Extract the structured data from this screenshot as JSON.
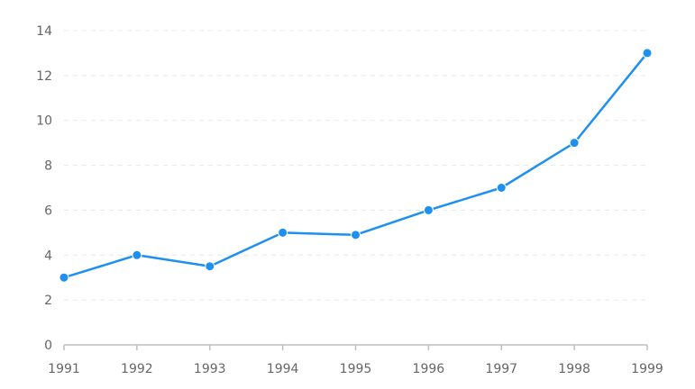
{
  "chart_data": {
    "type": "line",
    "title": "",
    "xlabel": "",
    "ylabel": "",
    "x": [
      "1991",
      "1992",
      "1993",
      "1994",
      "1995",
      "1996",
      "1997",
      "1998",
      "1999"
    ],
    "series": [
      {
        "values": [
          3,
          4,
          3.5,
          5,
          4.9,
          6,
          7,
          9,
          13
        ]
      }
    ],
    "ylim": [
      0,
      14
    ],
    "y_ticks": [
      "0",
      "2",
      "4",
      "6",
      "8",
      "10",
      "12",
      "14"
    ],
    "grid": "horizontal dashed",
    "legend": "none",
    "colors": {
      "line": "#1e90f0",
      "grid": "#e8e8e8",
      "axis": "#bfbfbf",
      "tick_text": "#666666"
    }
  }
}
